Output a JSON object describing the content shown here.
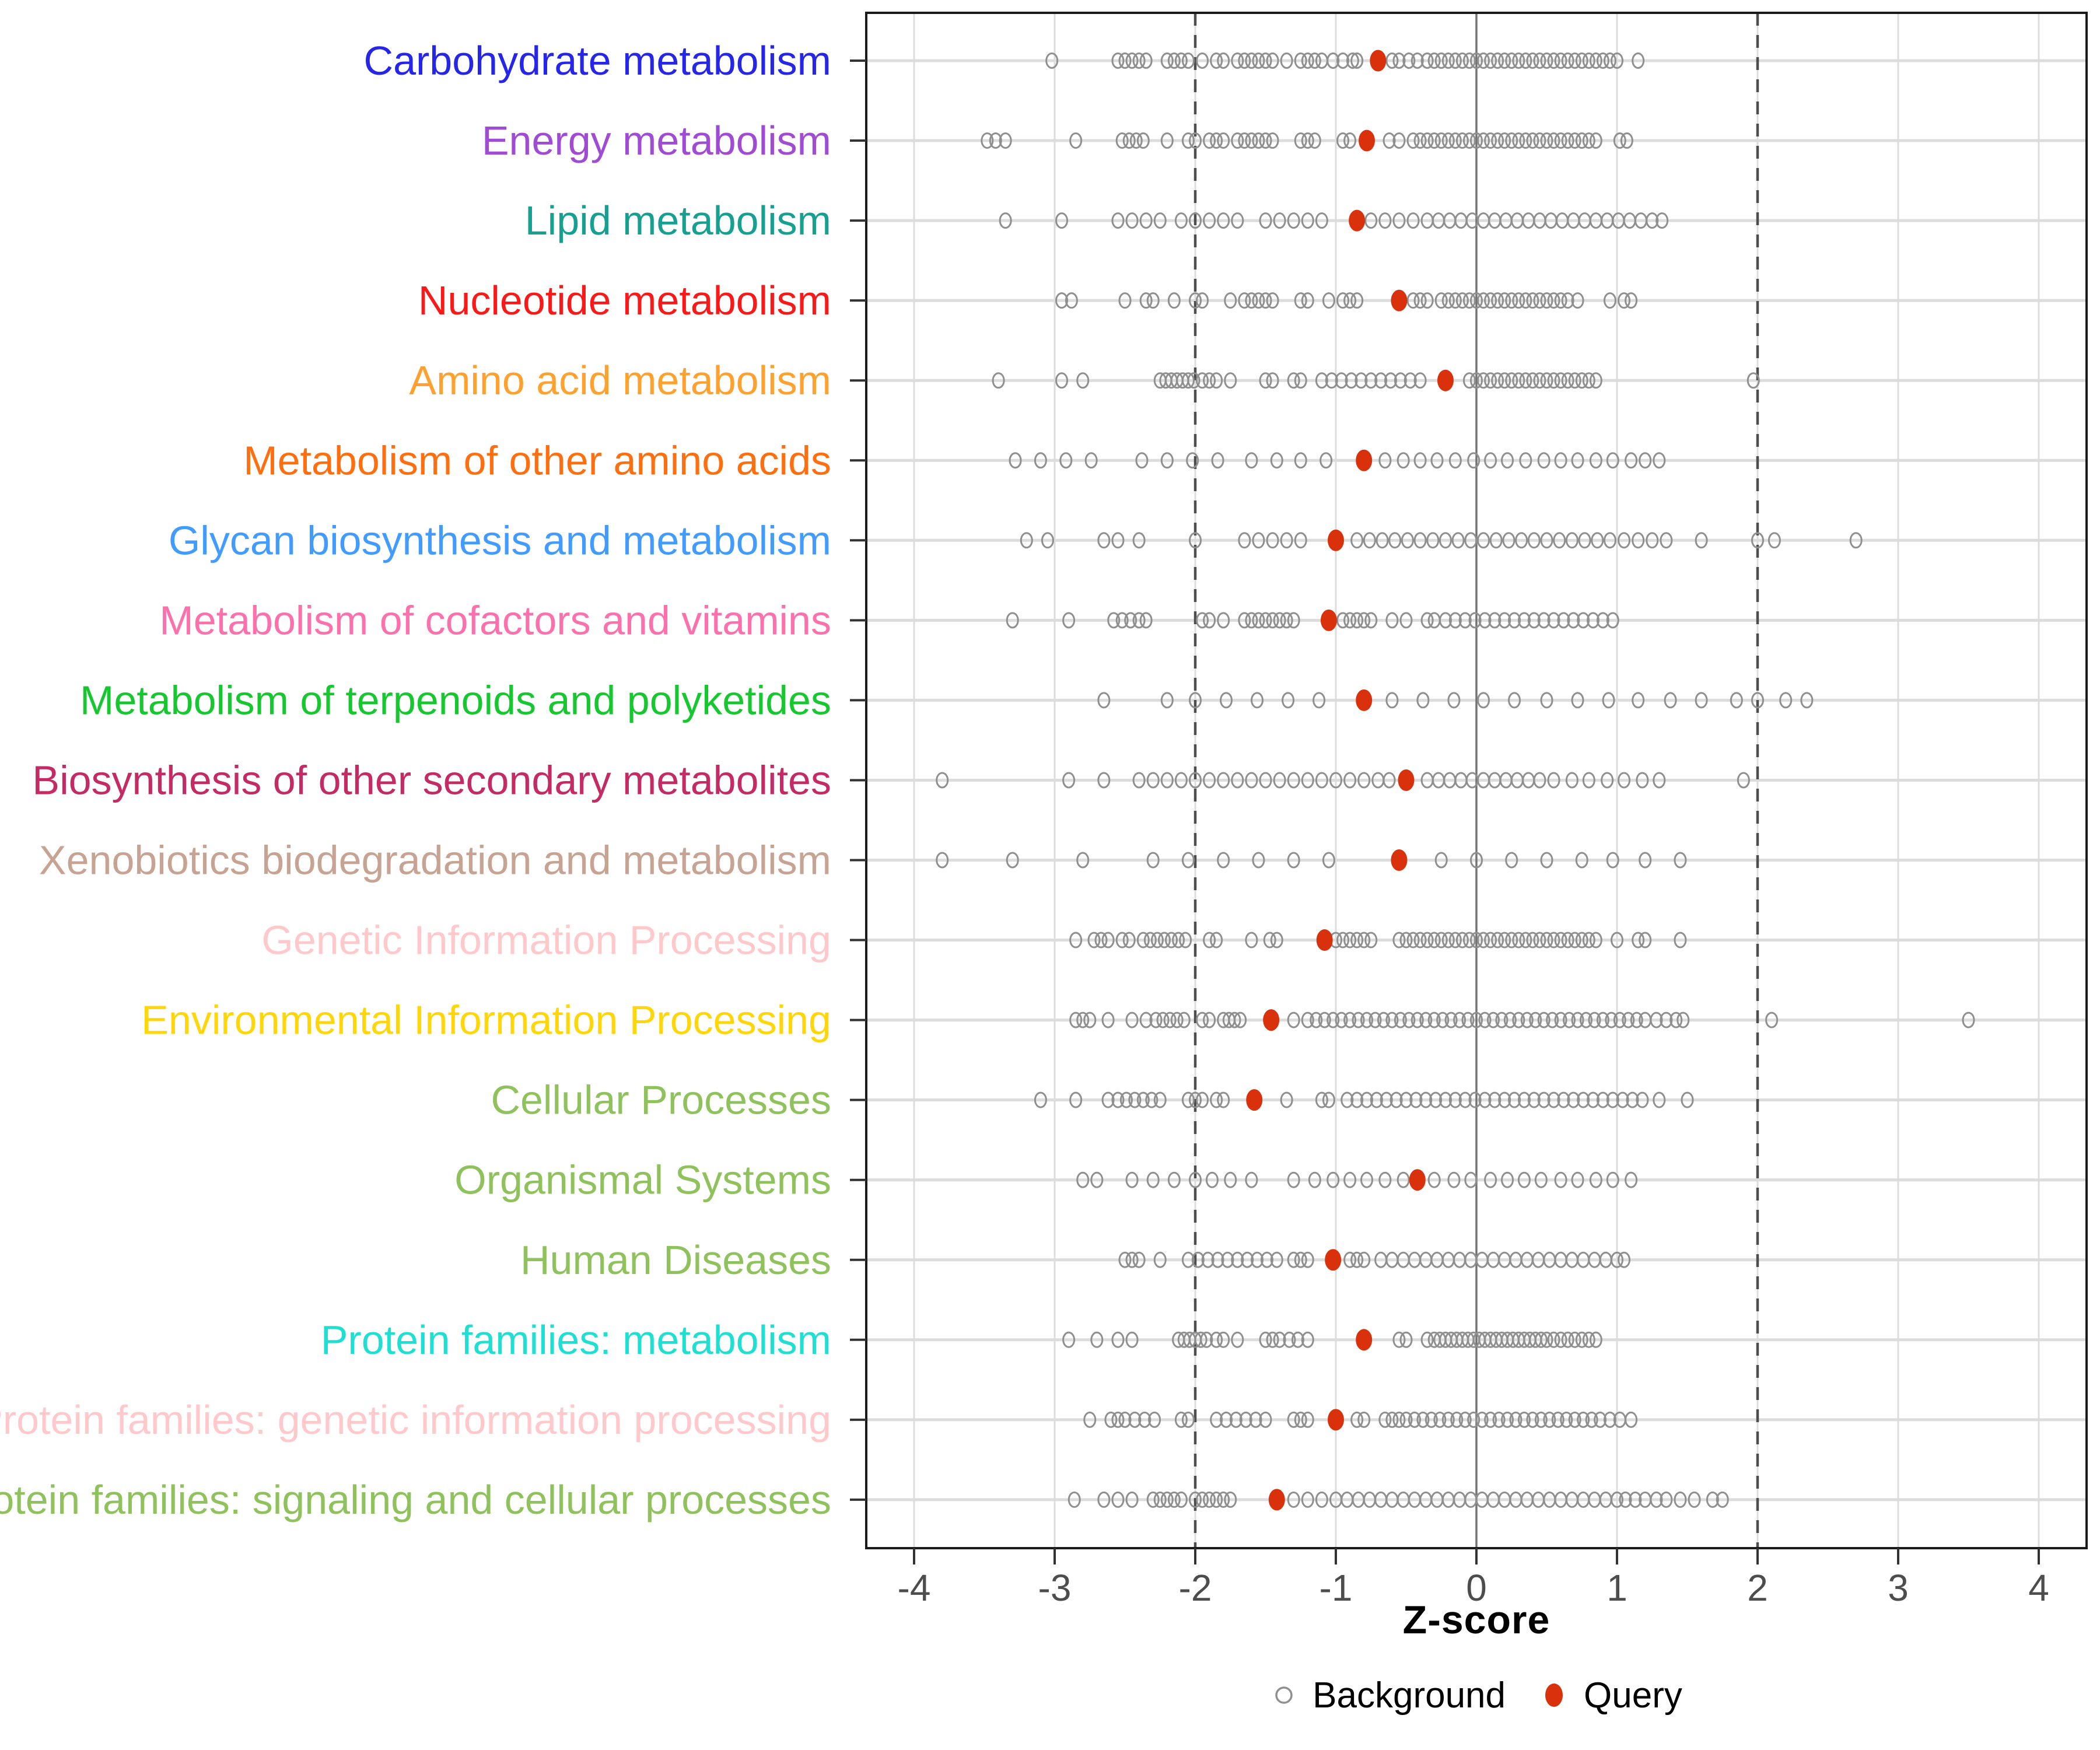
{
  "figure": {
    "xlabel": "Z-score",
    "legend": {
      "background_label": "Background",
      "query_label": "Query"
    }
  },
  "colors": {
    "background_point": "#8F8F8F",
    "query_point": "#D8310B",
    "grid_major": "#DCDCDC",
    "zero_line": "#737373",
    "threshold_line": "#4D4D4D",
    "axis_text": "#4D4D4D",
    "panel_border": "#1A1A1A"
  },
  "chart_data": {
    "type": "scatter",
    "title": "",
    "xlabel": "Z-score",
    "ylabel": "",
    "x_ticks": [
      -4,
      -3,
      -2,
      -1,
      0,
      1,
      2,
      3,
      4
    ],
    "xlim": [
      -4.35,
      4.33
    ],
    "grid": true,
    "legend_position": "bottom",
    "reference_lines": {
      "zero": 0,
      "dashed_thresholds": [
        -2,
        2
      ]
    },
    "legend": [
      {
        "name": "Background",
        "marker": "open-circle",
        "color": "#8F8F8F"
      },
      {
        "name": "Query",
        "marker": "filled-circle",
        "color": "#D8310B"
      }
    ],
    "categories": [
      {
        "label": "Carbohydrate metabolism",
        "color": "#2626E8",
        "query": -0.7,
        "background": [
          -3.02,
          -2.55,
          -2.5,
          -2.45,
          -2.4,
          -2.35,
          -2.2,
          -2.15,
          -2.1,
          -2.05,
          -1.95,
          -1.85,
          -1.8,
          -1.7,
          -1.65,
          -1.6,
          -1.55,
          -1.5,
          -1.45,
          -1.35,
          -1.25,
          -1.2,
          -1.15,
          -1.1,
          -1.02,
          -0.95,
          -0.88,
          -0.85,
          -0.6,
          -0.55,
          -0.48,
          -0.42,
          -0.35,
          -0.3,
          -0.25,
          -0.2,
          -0.15,
          -0.1,
          -0.05,
          0,
          0.05,
          0.1,
          0.15,
          0.2,
          0.25,
          0.3,
          0.35,
          0.4,
          0.45,
          0.5,
          0.55,
          0.6,
          0.65,
          0.7,
          0.75,
          0.8,
          0.85,
          0.9,
          0.95,
          1.0,
          1.15
        ]
      },
      {
        "label": "Energy metabolism",
        "color": "#A04BD4",
        "query": -0.78,
        "background": [
          -3.48,
          -3.42,
          -3.35,
          -2.85,
          -2.52,
          -2.47,
          -2.42,
          -2.37,
          -2.2,
          -2.05,
          -2.0,
          -1.9,
          -1.85,
          -1.8,
          -1.7,
          -1.65,
          -1.6,
          -1.55,
          -1.5,
          -1.45,
          -1.25,
          -1.2,
          -1.15,
          -0.95,
          -0.9,
          -0.62,
          -0.55,
          -0.45,
          -0.4,
          -0.35,
          -0.3,
          -0.25,
          -0.2,
          -0.15,
          -0.1,
          -0.05,
          0,
          0.05,
          0.1,
          0.15,
          0.2,
          0.25,
          0.3,
          0.35,
          0.4,
          0.45,
          0.5,
          0.55,
          0.6,
          0.65,
          0.7,
          0.75,
          0.8,
          0.85,
          1.02,
          1.07
        ]
      },
      {
        "label": "Lipid metabolism",
        "color": "#17A092",
        "query": -0.85,
        "background": [
          -3.35,
          -2.95,
          -2.55,
          -2.45,
          -2.35,
          -2.25,
          -2.1,
          -2.0,
          -1.9,
          -1.8,
          -1.7,
          -1.5,
          -1.4,
          -1.3,
          -1.2,
          -1.1,
          -0.75,
          -0.65,
          -0.55,
          -0.45,
          -0.35,
          -0.27,
          -0.19,
          -0.11,
          -0.03,
          0.05,
          0.13,
          0.21,
          0.29,
          0.37,
          0.45,
          0.53,
          0.61,
          0.69,
          0.77,
          0.85,
          0.93,
          1.01,
          1.09,
          1.17,
          1.25,
          1.32
        ]
      },
      {
        "label": "Nucleotide metabolism",
        "color": "#FA1919",
        "query": -0.55,
        "background": [
          -2.95,
          -2.88,
          -2.5,
          -2.35,
          -2.3,
          -2.15,
          -2.0,
          -1.95,
          -1.75,
          -1.65,
          -1.6,
          -1.55,
          -1.5,
          -1.45,
          -1.25,
          -1.2,
          -1.05,
          -0.95,
          -0.9,
          -0.85,
          -0.45,
          -0.4,
          -0.35,
          -0.25,
          -0.2,
          -0.15,
          -0.1,
          -0.05,
          0,
          0.05,
          0.1,
          0.15,
          0.2,
          0.25,
          0.3,
          0.35,
          0.4,
          0.45,
          0.5,
          0.55,
          0.6,
          0.65,
          0.72,
          0.95,
          1.05,
          1.1
        ]
      },
      {
        "label": "Amino acid metabolism",
        "color": "#FFA12E",
        "query": -0.22,
        "background": [
          -3.4,
          -2.95,
          -2.8,
          -2.25,
          -2.21,
          -2.17,
          -2.13,
          -2.09,
          -2.05,
          -2.01,
          -1.95,
          -1.9,
          -1.85,
          -1.75,
          -1.5,
          -1.45,
          -1.3,
          -1.25,
          -1.1,
          -1.03,
          -0.96,
          -0.89,
          -0.82,
          -0.75,
          -0.68,
          -0.61,
          -0.54,
          -0.47,
          -0.4,
          -0.05,
          0,
          0.05,
          0.1,
          0.15,
          0.2,
          0.25,
          0.3,
          0.35,
          0.4,
          0.45,
          0.5,
          0.55,
          0.6,
          0.65,
          0.7,
          0.75,
          0.8,
          0.85,
          1.97
        ]
      },
      {
        "label": "Metabolism of other amino acids",
        "color": "#FF6E0F",
        "query": -0.8,
        "background": [
          -3.28,
          -3.1,
          -2.92,
          -2.74,
          -2.38,
          -2.2,
          -2.02,
          -1.84,
          -1.6,
          -1.42,
          -1.25,
          -1.07,
          -0.65,
          -0.52,
          -0.4,
          -0.28,
          -0.15,
          -0.02,
          0.1,
          0.22,
          0.35,
          0.48,
          0.6,
          0.72,
          0.85,
          0.97,
          1.1,
          1.2,
          1.3
        ]
      },
      {
        "label": "Glycan biosynthesis and metabolism",
        "color": "#429BFF",
        "query": -1.0,
        "background": [
          -3.2,
          -3.05,
          -2.65,
          -2.55,
          -2.4,
          -2.0,
          -1.65,
          -1.55,
          -1.45,
          -1.35,
          -1.25,
          -0.85,
          -0.76,
          -0.67,
          -0.58,
          -0.49,
          -0.4,
          -0.31,
          -0.22,
          -0.13,
          -0.04,
          0.05,
          0.14,
          0.23,
          0.32,
          0.41,
          0.5,
          0.59,
          0.68,
          0.77,
          0.86,
          0.95,
          1.05,
          1.15,
          1.25,
          1.35,
          1.6,
          2.0,
          2.12,
          2.7
        ]
      },
      {
        "label": "Metabolism of cofactors and vitamins",
        "color": "#FC70AC",
        "query": -1.05,
        "background": [
          -3.3,
          -2.9,
          -2.58,
          -2.52,
          -2.46,
          -2.4,
          -2.35,
          -1.95,
          -1.9,
          -1.8,
          -1.65,
          -1.6,
          -1.55,
          -1.5,
          -1.45,
          -1.4,
          -1.35,
          -1.3,
          -0.95,
          -0.9,
          -0.85,
          -0.8,
          -0.75,
          -0.6,
          -0.5,
          -0.35,
          -0.3,
          -0.22,
          -0.15,
          -0.08,
          -0.01,
          0.06,
          0.13,
          0.2,
          0.27,
          0.34,
          0.41,
          0.48,
          0.55,
          0.62,
          0.69,
          0.76,
          0.83,
          0.9,
          0.97
        ]
      },
      {
        "label": "Metabolism of terpenoids and polyketides",
        "color": "#16C72F",
        "query": -0.8,
        "background": [
          -2.65,
          -2.2,
          -2.0,
          -1.78,
          -1.56,
          -1.34,
          -1.12,
          -0.6,
          -0.38,
          -0.16,
          0.05,
          0.27,
          0.5,
          0.72,
          0.94,
          1.15,
          1.38,
          1.6,
          1.85,
          2.0,
          2.2,
          2.35
        ]
      },
      {
        "label": "Biosynthesis of other secondary metabolites",
        "color": "#C42A63",
        "query": -0.5,
        "background": [
          -3.8,
          -2.9,
          -2.65,
          -2.4,
          -2.3,
          -2.2,
          -2.1,
          -2.0,
          -1.9,
          -1.8,
          -1.7,
          -1.6,
          -1.5,
          -1.4,
          -1.3,
          -1.2,
          -1.1,
          -1.0,
          -0.9,
          -0.8,
          -0.7,
          -0.62,
          -0.35,
          -0.27,
          -0.19,
          -0.11,
          -0.03,
          0.05,
          0.13,
          0.21,
          0.29,
          0.37,
          0.45,
          0.55,
          0.68,
          0.8,
          0.93,
          1.05,
          1.18,
          1.3,
          1.9
        ]
      },
      {
        "label": "Xenobiotics biodegradation and metabolism",
        "color": "#C6A392",
        "query": -0.55,
        "background": [
          -3.8,
          -3.3,
          -2.8,
          -2.3,
          -2.05,
          -1.8,
          -1.55,
          -1.3,
          -1.05,
          -0.25,
          0.0,
          0.25,
          0.5,
          0.75,
          0.97,
          1.2,
          1.45
        ]
      },
      {
        "label": "Genetic Information Processing",
        "color": "#FFC9CC",
        "query": -1.08,
        "background": [
          -2.85,
          -2.72,
          -2.67,
          -2.62,
          -2.52,
          -2.47,
          -2.37,
          -2.32,
          -2.27,
          -2.22,
          -2.17,
          -2.12,
          -2.07,
          -1.9,
          -1.85,
          -1.6,
          -1.47,
          -1.42,
          -1.0,
          -0.95,
          -0.9,
          -0.85,
          -0.8,
          -0.75,
          -0.55,
          -0.5,
          -0.45,
          -0.4,
          -0.35,
          -0.3,
          -0.25,
          -0.2,
          -0.15,
          -0.1,
          -0.05,
          0,
          0.05,
          0.1,
          0.15,
          0.2,
          0.25,
          0.3,
          0.35,
          0.4,
          0.45,
          0.5,
          0.55,
          0.6,
          0.65,
          0.7,
          0.75,
          0.8,
          0.85,
          1.0,
          1.15,
          1.2,
          1.45
        ]
      },
      {
        "label": "Environmental Information Processing",
        "color": "#FFD60A",
        "query": -1.46,
        "background": [
          -2.85,
          -2.8,
          -2.75,
          -2.62,
          -2.45,
          -2.35,
          -2.28,
          -2.23,
          -2.18,
          -2.13,
          -2.08,
          -1.95,
          -1.9,
          -1.8,
          -1.76,
          -1.72,
          -1.68,
          -1.3,
          -1.2,
          -1.14,
          -1.08,
          -1.02,
          -0.96,
          -0.9,
          -0.84,
          -0.78,
          -0.72,
          -0.66,
          -0.6,
          -0.54,
          -0.48,
          -0.42,
          -0.36,
          -0.3,
          -0.24,
          -0.18,
          -0.12,
          -0.06,
          0,
          0.06,
          0.12,
          0.18,
          0.24,
          0.3,
          0.36,
          0.42,
          0.48,
          0.54,
          0.6,
          0.66,
          0.72,
          0.78,
          0.84,
          0.9,
          0.96,
          1.02,
          1.08,
          1.14,
          1.2,
          1.28,
          1.35,
          1.42,
          1.47,
          2.1,
          3.5
        ]
      },
      {
        "label": "Cellular Processes",
        "color": "#8FC25C",
        "query": -1.58,
        "background": [
          -3.1,
          -2.85,
          -2.62,
          -2.55,
          -2.49,
          -2.43,
          -2.37,
          -2.31,
          -2.25,
          -2.05,
          -2.0,
          -1.95,
          -1.85,
          -1.8,
          -1.35,
          -1.1,
          -1.05,
          -0.92,
          -0.85,
          -0.78,
          -0.71,
          -0.64,
          -0.57,
          -0.5,
          -0.43,
          -0.36,
          -0.29,
          -0.22,
          -0.15,
          -0.08,
          -0.01,
          0.06,
          0.13,
          0.2,
          0.27,
          0.34,
          0.41,
          0.48,
          0.55,
          0.62,
          0.69,
          0.76,
          0.83,
          0.9,
          0.97,
          1.04,
          1.11,
          1.18,
          1.3,
          1.5
        ]
      },
      {
        "label": "Organismal Systems",
        "color": "#8FC25C",
        "query": -0.42,
        "background": [
          -2.8,
          -2.7,
          -2.45,
          -2.3,
          -2.15,
          -2.0,
          -1.88,
          -1.75,
          -1.6,
          -1.3,
          -1.15,
          -1.02,
          -0.9,
          -0.78,
          -0.65,
          -0.52,
          -0.3,
          -0.16,
          -0.04,
          0.1,
          0.22,
          0.34,
          0.46,
          0.6,
          0.72,
          0.85,
          0.97,
          1.1
        ]
      },
      {
        "label": "Human Diseases",
        "color": "#8FC25C",
        "query": -1.02,
        "background": [
          -2.5,
          -2.45,
          -2.4,
          -2.25,
          -2.05,
          -1.98,
          -1.91,
          -1.84,
          -1.77,
          -1.7,
          -1.63,
          -1.56,
          -1.49,
          -1.42,
          -1.3,
          -1.25,
          -1.2,
          -0.9,
          -0.85,
          -0.8,
          -0.68,
          -0.6,
          -0.52,
          -0.44,
          -0.36,
          -0.28,
          -0.2,
          -0.12,
          -0.04,
          0.04,
          0.12,
          0.2,
          0.28,
          0.36,
          0.44,
          0.52,
          0.6,
          0.68,
          0.76,
          0.84,
          0.92,
          1.0,
          1.05
        ]
      },
      {
        "label": "Protein families: metabolism",
        "color": "#1FDED2",
        "query": -0.8,
        "background": [
          -2.9,
          -2.7,
          -2.55,
          -2.45,
          -2.12,
          -2.08,
          -2.04,
          -2.0,
          -1.96,
          -1.92,
          -1.85,
          -1.8,
          -1.7,
          -1.5,
          -1.45,
          -1.4,
          -1.33,
          -1.27,
          -1.2,
          -0.55,
          -0.5,
          -0.35,
          -0.3,
          -0.26,
          -0.22,
          -0.18,
          -0.14,
          -0.1,
          -0.06,
          -0.02,
          0.02,
          0.06,
          0.1,
          0.14,
          0.18,
          0.22,
          0.26,
          0.3,
          0.34,
          0.38,
          0.42,
          0.46,
          0.5,
          0.55,
          0.6,
          0.65,
          0.7,
          0.75,
          0.8,
          0.85
        ]
      },
      {
        "label": "Protein families: genetic information processing",
        "color": "#FFC9CC",
        "query": -1.0,
        "background": [
          -2.75,
          -2.6,
          -2.55,
          -2.5,
          -2.43,
          -2.36,
          -2.29,
          -2.1,
          -2.05,
          -1.85,
          -1.78,
          -1.71,
          -1.64,
          -1.57,
          -1.5,
          -1.3,
          -1.25,
          -1.2,
          -0.85,
          -0.8,
          -0.65,
          -0.6,
          -0.55,
          -0.5,
          -0.44,
          -0.38,
          -0.32,
          -0.26,
          -0.2,
          -0.14,
          -0.08,
          -0.02,
          0.04,
          0.1,
          0.16,
          0.22,
          0.28,
          0.34,
          0.4,
          0.46,
          0.52,
          0.58,
          0.64,
          0.7,
          0.76,
          0.82,
          0.88,
          0.95,
          1.02,
          1.1
        ]
      },
      {
        "label": "Protein families: signaling and cellular processes",
        "color": "#8FC25C",
        "query": -1.42,
        "background": [
          -2.86,
          -2.65,
          -2.55,
          -2.45,
          -2.3,
          -2.25,
          -2.2,
          -2.15,
          -2.1,
          -2.0,
          -1.95,
          -1.9,
          -1.85,
          -1.8,
          -1.75,
          -1.3,
          -1.2,
          -1.1,
          -1.0,
          -0.92,
          -0.84,
          -0.76,
          -0.68,
          -0.6,
          -0.52,
          -0.44,
          -0.36,
          -0.28,
          -0.2,
          -0.12,
          -0.04,
          0.04,
          0.12,
          0.2,
          0.28,
          0.36,
          0.44,
          0.52,
          0.6,
          0.68,
          0.76,
          0.84,
          0.92,
          1.0,
          1.06,
          1.13,
          1.2,
          1.28,
          1.35,
          1.45,
          1.55,
          1.68,
          1.75
        ]
      }
    ]
  }
}
